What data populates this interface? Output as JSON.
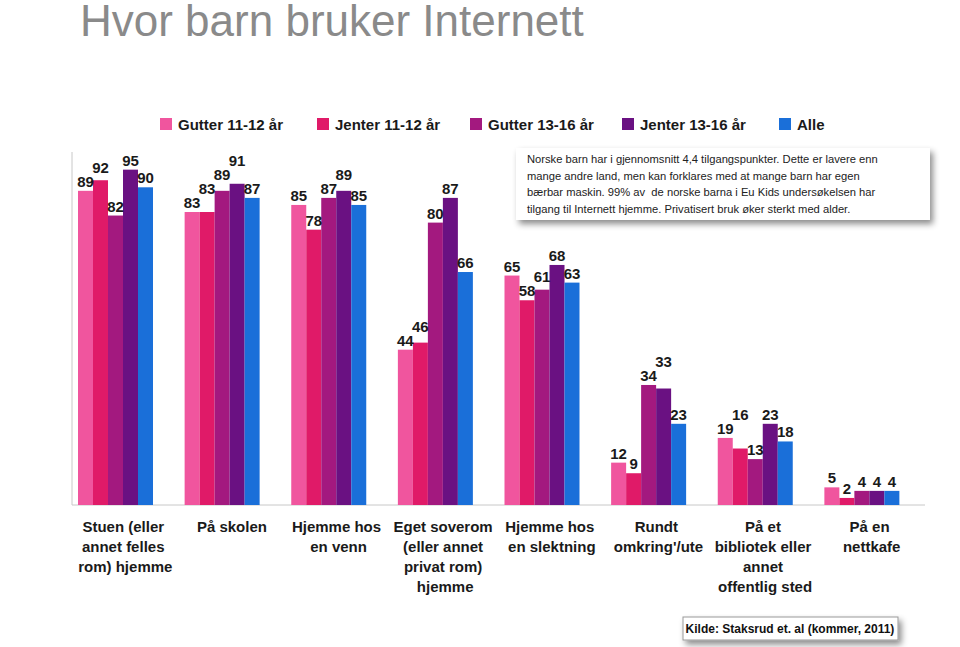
{
  "chart_data": {
    "type": "bar",
    "title": "Hvor barn bruker Internett",
    "categories": [
      "Stuen (eller annet felles rom) hjemme",
      "På skolen",
      "Hjemme hos en venn",
      "Eget soverom (eller annet privat rom) hjemme",
      "Hjemme hos en slektning",
      "Rundt omkring'/ute",
      "På et bibliotek eller annet offentlig sted",
      "På en nettkafe"
    ],
    "series": [
      {
        "name": "Gutter 11-12 år",
        "color": "#f0559e",
        "values": [
          89,
          83,
          85,
          44,
          65,
          12,
          19,
          5
        ]
      },
      {
        "name": "Jenter 11-12 år",
        "color": "#e01a68",
        "values": [
          92,
          83,
          78,
          46,
          58,
          9,
          16,
          2
        ]
      },
      {
        "name": "Gutter 13-16 år",
        "color": "#a3197f",
        "values": [
          82,
          89,
          87,
          80,
          61,
          34,
          13,
          4
        ]
      },
      {
        "name": "Jenter 13-16 år",
        "color": "#6a1182",
        "values": [
          95,
          91,
          89,
          87,
          68,
          33,
          23,
          4
        ]
      },
      {
        "name": "Alle",
        "color": "#1a6fd9",
        "values": [
          90,
          87,
          85,
          66,
          63,
          23,
          18,
          4
        ]
      }
    ],
    "ylim": [
      0,
      100
    ],
    "yticks": [],
    "tick_labels": "x",
    "data_labels": true,
    "legend": "top",
    "grid": false,
    "annotation": [
      "Norske barn har i gjennomsnitt 4,4 tilgangspunkter. Dette er lavere enn",
      "mange andre land, men kan forklares med at mange barn har egen",
      "bærbar maskin. 99% av  de norske barna i Eu Kids undersøkelsen har",
      "tilgang til Internett hjemme. Privatisert bruk øker sterkt med alder."
    ],
    "source": "Kilde: Staksrud et. al (kommer, 2011)"
  }
}
